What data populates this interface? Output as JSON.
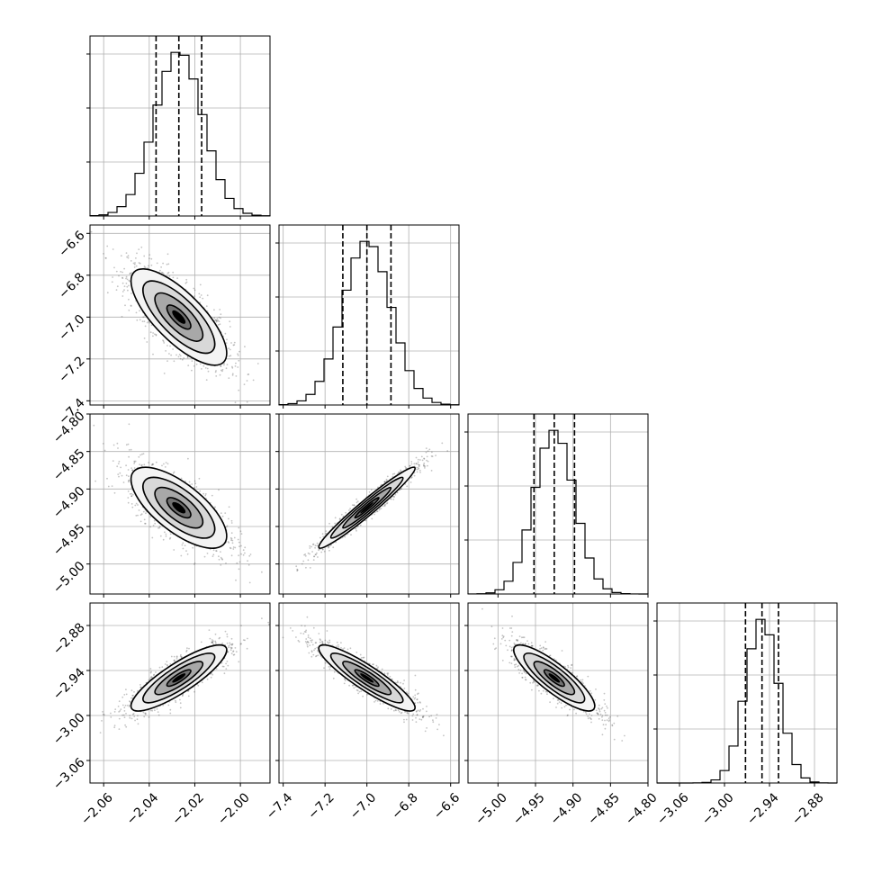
{
  "chart_data": {
    "type": "corner",
    "parameters": [
      {
        "mean": -2.027,
        "sigma": 0.0105,
        "range": [
          -2.066,
          -1.987
        ],
        "ticks": [
          -2.06,
          -2.04,
          -2.02,
          -2.0
        ],
        "tick_labels": [
          "−2.06",
          "−2.04",
          "−2.02",
          "−2.00"
        ],
        "quantiles": [
          -2.037,
          -2.027,
          -2.017
        ]
      },
      {
        "mean": -7.0,
        "sigma": 0.115,
        "range": [
          -7.42,
          -6.56
        ],
        "ticks": [
          -7.4,
          -7.2,
          -7.0,
          -6.8,
          -6.6
        ],
        "tick_labels": [
          "−7.4",
          "−7.2",
          "−7.0",
          "−6.8",
          "−6.6"
        ],
        "quantiles": [
          -7.115,
          -7.0,
          -6.885
        ]
      },
      {
        "mean": -4.925,
        "sigma": 0.027,
        "range": [
          -5.04,
          -4.8
        ],
        "ticks": [
          -5.0,
          -4.95,
          -4.9,
          -4.85,
          -4.8
        ],
        "tick_labels": [
          "−5.00",
          "−4.95",
          "−4.90",
          "−4.85",
          "−4.80"
        ],
        "quantiles": [
          -4.952,
          -4.925,
          -4.898
        ]
      },
      {
        "mean": -2.95,
        "sigma": 0.022,
        "range": [
          -3.09,
          -2.85
        ],
        "ticks": [
          -3.06,
          -3.0,
          -2.94,
          -2.88
        ],
        "tick_labels": [
          "−3.06",
          "−3.00",
          "−2.94",
          "−2.88"
        ],
        "quantiles": [
          -2.972,
          -2.95,
          -2.928
        ]
      }
    ],
    "correlations": [
      [
        1.0,
        -0.75,
        -0.7,
        0.85
      ],
      [
        -0.75,
        1.0,
        0.97,
        -0.9
      ],
      [
        -0.7,
        0.97,
        1.0,
        -0.85
      ],
      [
        0.85,
        -0.9,
        -0.85,
        1.0
      ]
    ],
    "contour_levels_sigma": [
      0.5,
      1.0,
      1.5,
      2.0
    ],
    "grid": true,
    "colors": {
      "points": "#555555",
      "lines": "#000000",
      "grid": "#b0b0b0"
    }
  }
}
